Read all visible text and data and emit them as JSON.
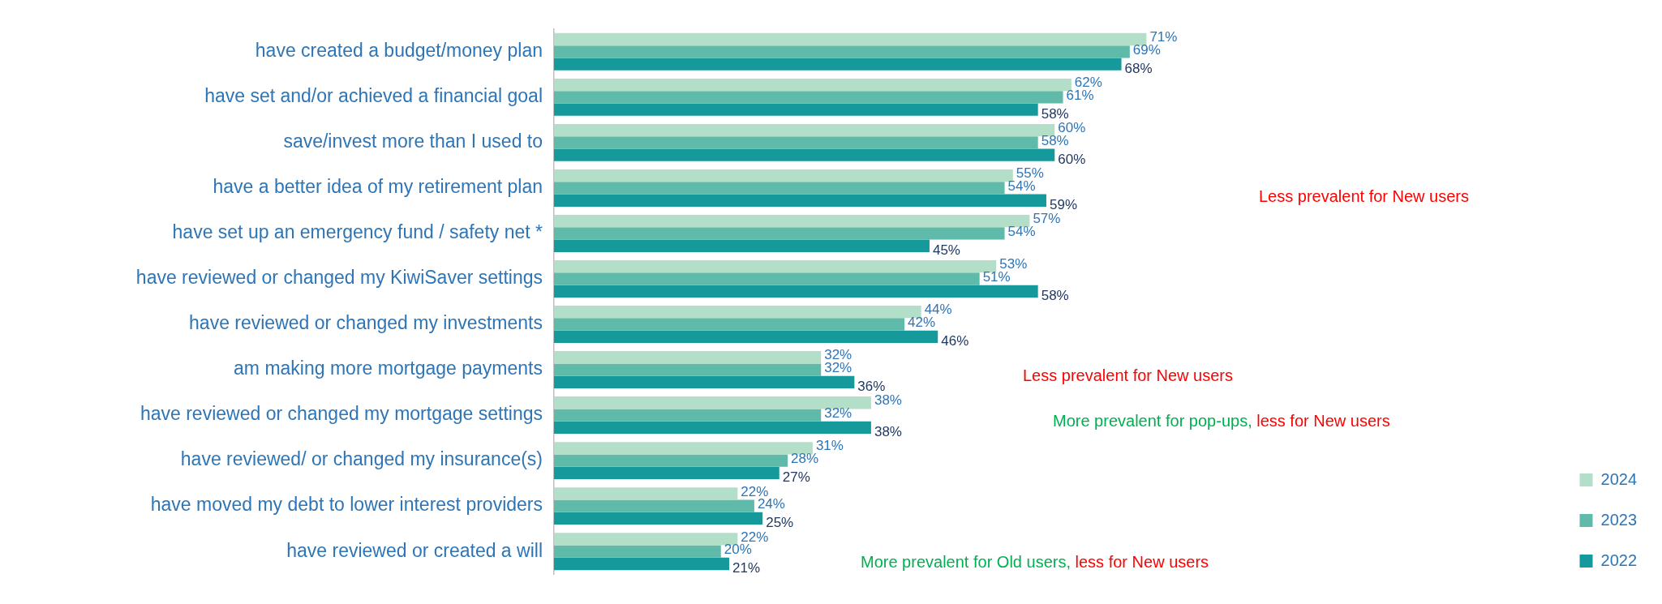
{
  "chart_data": {
    "type": "bar",
    "orientation": "horizontal",
    "legend": "bottom right",
    "categories": [
      "have created a budget/money plan",
      "have set and/or achieved a financial goal",
      "save/invest more than I used to",
      "have a better idea of my retirement plan",
      "have set up an emergency fund / safety net *",
      "have reviewed or changed my KiwiSaver settings",
      "have reviewed or changed my investments",
      "am making more mortgage payments",
      "have reviewed or changed my mortgage settings",
      "have reviewed/ or changed my insurance(s)",
      "have moved my debt to lower interest providers",
      "have reviewed or created a will"
    ],
    "series": [
      {
        "name": "2024",
        "color": "#b3dfc8",
        "values": [
          71,
          62,
          60,
          55,
          57,
          53,
          44,
          32,
          38,
          31,
          22,
          22
        ],
        "value_labels": [
          "71%",
          "62%",
          "60%",
          "55%",
          "57%",
          "53%",
          "44%",
          "32%",
          "38%",
          "31%",
          "22%",
          "22%"
        ]
      },
      {
        "name": "2023",
        "color": "#5fbaa9",
        "values": [
          69,
          61,
          58,
          54,
          54,
          51,
          42,
          32,
          32,
          28,
          24,
          20
        ],
        "value_labels": [
          "69%",
          "61%",
          "58%",
          "54%",
          "54%",
          "51%",
          "42%",
          "32%",
          "32%",
          "28%",
          "24%",
          "20%"
        ]
      },
      {
        "name": "2022",
        "color": "#16999a",
        "values": [
          68,
          58,
          60,
          59,
          45,
          58,
          46,
          36,
          38,
          27,
          25,
          21
        ],
        "value_labels": [
          "68%",
          "58%",
          "60%",
          "59%",
          "45%",
          "58%",
          "46%",
          "36%",
          "38%",
          "27%",
          "25%",
          "21%"
        ]
      }
    ],
    "annotations": [
      "Less prevalent for New users",
      "Less prevalent for New users",
      "More prevalent for pop-ups,",
      "less for New users",
      "More prevalent for Old users,",
      "less for New users"
    ]
  }
}
